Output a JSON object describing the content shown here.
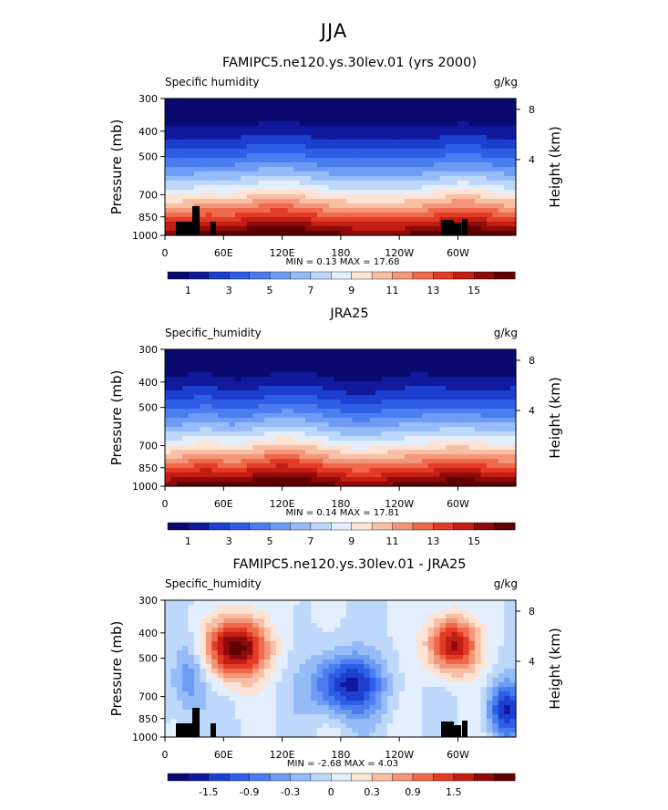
{
  "main_title": "JJA",
  "chart_data": [
    {
      "type": "heatmap",
      "title": "FAMIPC5.ne120.ys.30lev.01 (yrs 2000)",
      "left_label": "Specific humidity",
      "unit": "g/kg",
      "ylabel": "Pressure (mb)",
      "right_ylabel": "Height (km)",
      "yticks": [
        "300",
        "400",
        "500",
        "700",
        "850",
        "1000"
      ],
      "right_yticks": [
        "8",
        "4"
      ],
      "xticks": [
        "0",
        "60E",
        "120E",
        "180",
        "120W",
        "60W"
      ],
      "stats": "MIN =   0.13   MAX =   17.68",
      "colorbar_labels": [
        "1",
        "3",
        "5",
        "7",
        "9",
        "11",
        "13",
        "15"
      ],
      "field": "absolute",
      "topography": true
    },
    {
      "type": "heatmap",
      "title": "JRA25",
      "left_label": "Specific_humidity",
      "unit": "g/kg",
      "ylabel": "Pressure (mb)",
      "right_ylabel": "Height (km)",
      "yticks": [
        "300",
        "400",
        "500",
        "700",
        "850",
        "1000"
      ],
      "right_yticks": [
        "8",
        "4"
      ],
      "xticks": [
        "0",
        "60E",
        "120E",
        "180",
        "120W",
        "60W"
      ],
      "stats": "MIN =   0.14   MAX =   17.81",
      "colorbar_labels": [
        "1",
        "3",
        "5",
        "7",
        "9",
        "11",
        "13",
        "15"
      ],
      "field": "absolute",
      "topography": false
    },
    {
      "type": "heatmap",
      "title": "FAMIPC5.ne120.ys.30lev.01 - JRA25",
      "left_label": "Specific_humidity",
      "unit": "g/kg",
      "ylabel": "Pressure (mb)",
      "right_ylabel": "Height (km)",
      "yticks": [
        "300",
        "400",
        "500",
        "700",
        "850",
        "1000"
      ],
      "right_yticks": [
        "8",
        "4"
      ],
      "xticks": [
        "0",
        "60E",
        "120E",
        "180",
        "120W",
        "60W"
      ],
      "stats": "MIN =  -2.68   MAX =   4.03",
      "colorbar_labels": [
        "-1.5",
        "-0.9",
        "-0.3",
        "0",
        "0.3",
        "0.9",
        "1.5"
      ],
      "field": "difference",
      "topography": true
    }
  ],
  "colors": {
    "palette": [
      "#0a0a6e",
      "#10189c",
      "#1c3fd0",
      "#2f5ee6",
      "#4a7df0",
      "#6e9cf4",
      "#95bcf8",
      "#bdd8fb",
      "#e3efff",
      "#fde3d4",
      "#f8bfa5",
      "#f4967a",
      "#ee6a4a",
      "#e23b26",
      "#c31d14",
      "#8f0a0a",
      "#5e0000"
    ]
  }
}
